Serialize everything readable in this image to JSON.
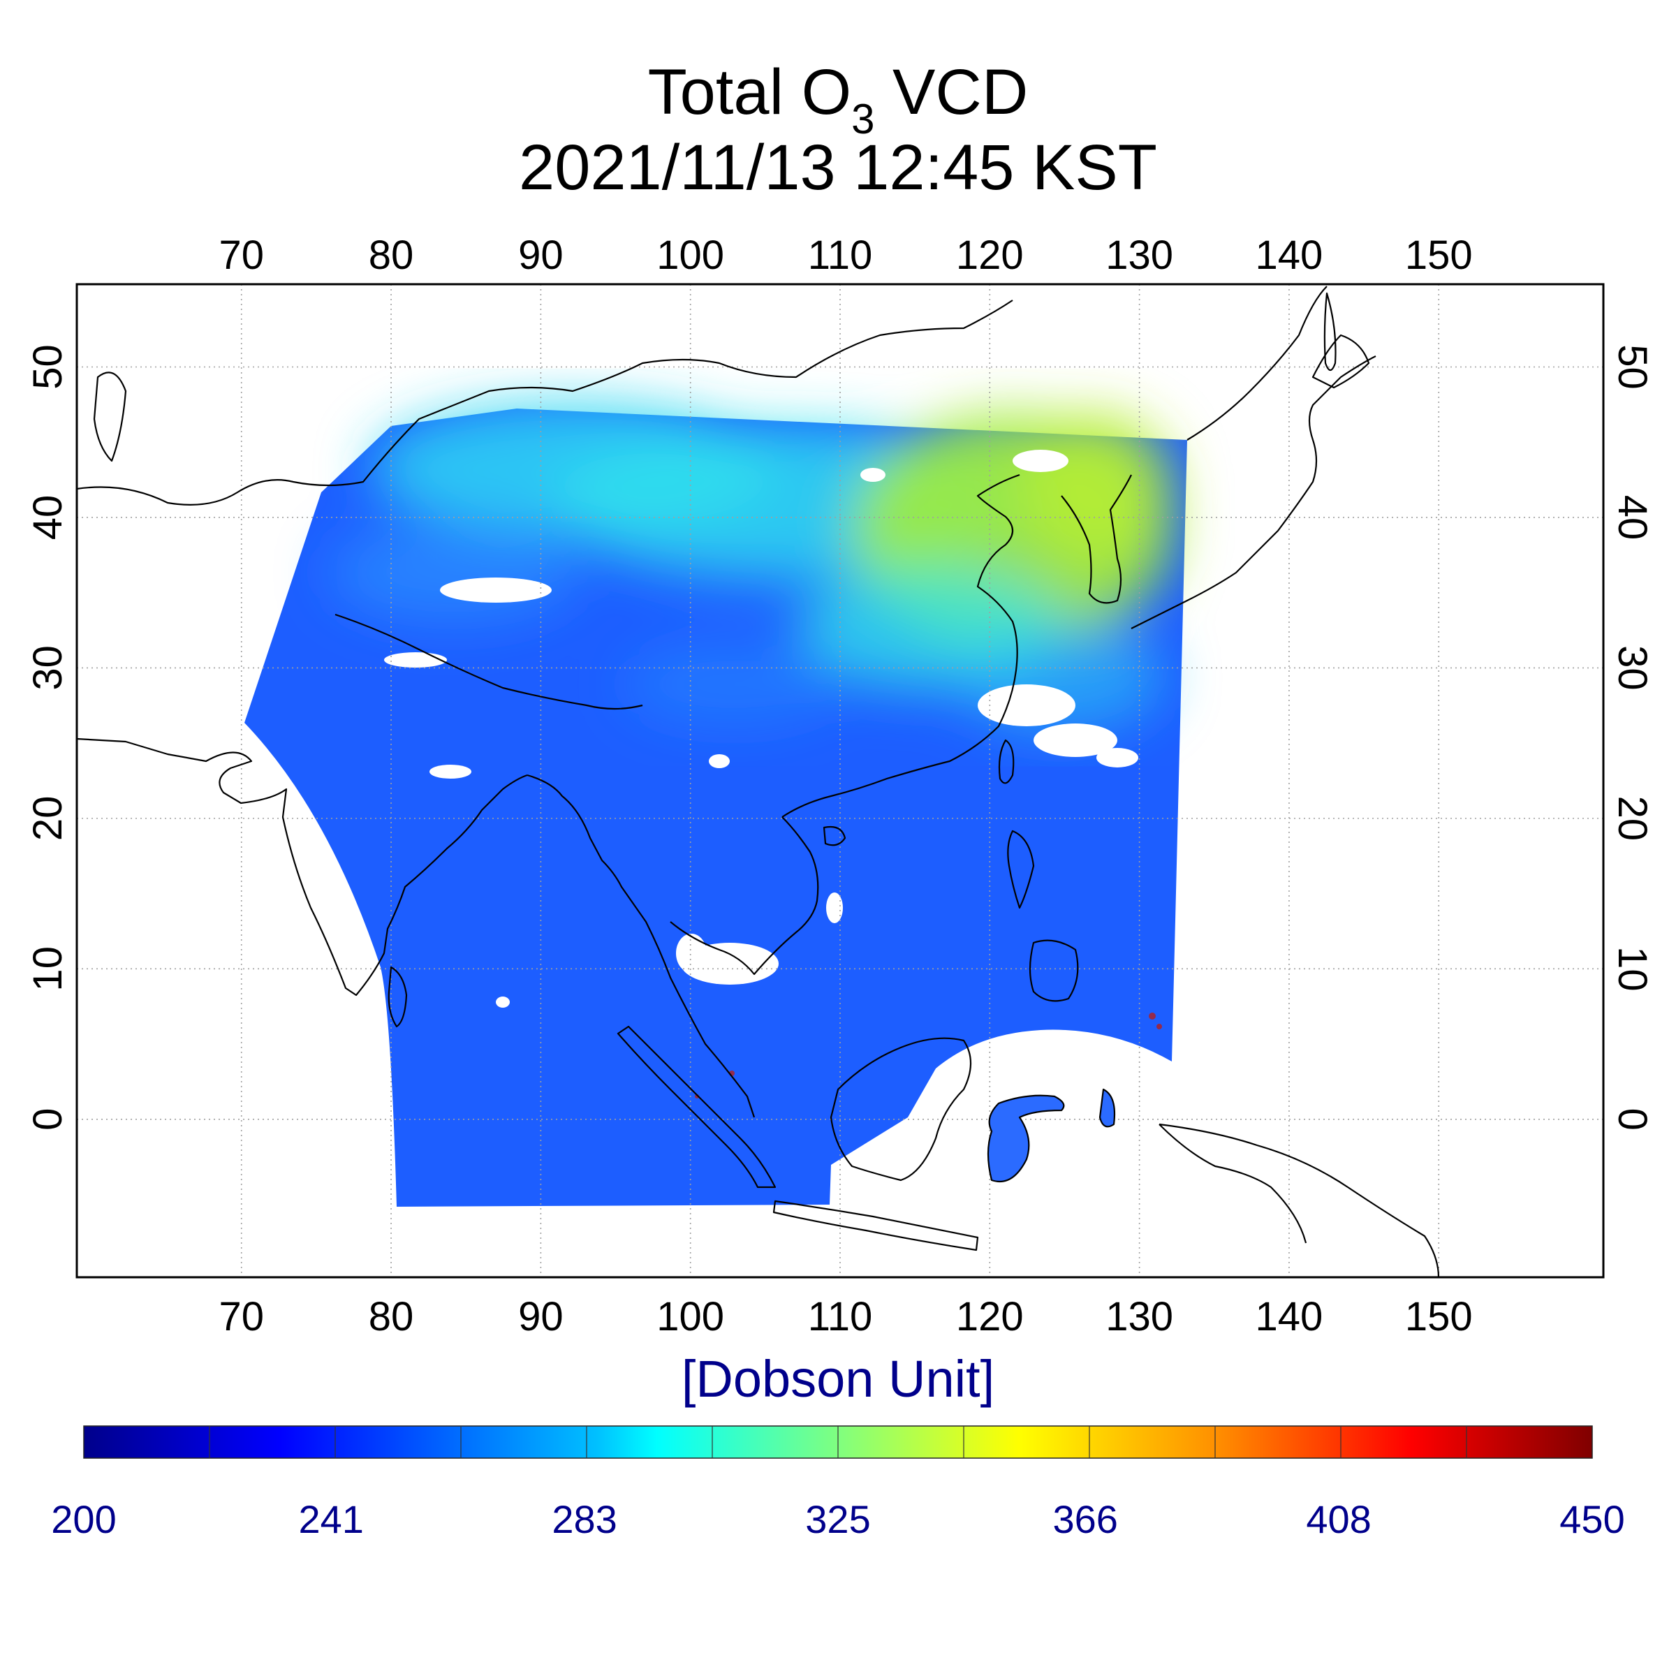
{
  "title": {
    "line1_prefix": "Total O",
    "line1_subscript": "3",
    "line1_suffix": " VCD",
    "line2": "2021/11/13 12:45 KST"
  },
  "map": {
    "lon_ticks": [
      "70",
      "80",
      "90",
      "100",
      "110",
      "120",
      "130",
      "140",
      "150"
    ],
    "lat_ticks": [
      "50",
      "40",
      "30",
      "20",
      "10",
      "0"
    ],
    "lon_range": [
      59,
      161
    ],
    "lat_range": [
      -10.5,
      55.5
    ],
    "grid": true
  },
  "unit": "[Dobson Unit]",
  "colorbar": {
    "min": 200,
    "max": 450,
    "tick_labels": [
      "200",
      "241",
      "283",
      "325",
      "366",
      "408",
      "450"
    ],
    "colormap": "jet",
    "colors": [
      "#00008b",
      "#0000ff",
      "#00c8ff",
      "#00ffff",
      "#ffff00",
      "#ff8000",
      "#ff0000",
      "#800000"
    ]
  },
  "colors": {
    "low_ozone": "#1a5cff",
    "mid_ozone": "#22e6f0",
    "high_ozone": "#9cef3c",
    "axis_text": "#000000",
    "colorbar_text": "#00008b"
  }
}
